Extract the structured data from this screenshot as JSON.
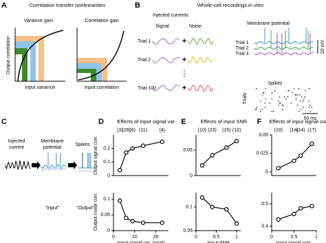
{
  "panels": {
    "A": {
      "letter": "A",
      "title": "Correlation transfer nonlinearities",
      "left": {
        "title": "Variance gain",
        "y_label": "Output correlation",
        "x_label": "Input variance"
      },
      "right": {
        "title": "Correlation gain",
        "x_label": "Input correlation"
      }
    },
    "B": {
      "letter": "B",
      "title": "Whole-cell recordings in vitro",
      "injected": "Injected currents",
      "signal": "Signal",
      "noise": "Noise",
      "trials": [
        "Trial 1",
        "Trial 2",
        "Trial 100"
      ],
      "plus": "+",
      "ellipsis": "⋮",
      "membrane": "Membrane potential",
      "mp_trials": [
        "Trial 1",
        "Trial 2",
        "Trial 3"
      ],
      "mv_scale": "20 mV",
      "spikes": "Spikes",
      "trials_label": "Trials",
      "ms_scale": "50 ms"
    },
    "C": {
      "letter": "C",
      "injected": [
        "Injected",
        "current"
      ],
      "membrane": [
        "Membrane",
        "potential"
      ],
      "spikes": "Spikes",
      "input": "\"Input\"",
      "output": "\"Output\""
    }
  },
  "chart_data": [
    {
      "type": "line",
      "panel_label": "D",
      "title": "Effects of input signal var.",
      "annotations": [
        "(3)",
        "(29)",
        "(6)",
        "(11)",
        "(4)"
      ],
      "y_label": "Output signal corr.",
      "x": [
        3,
        6,
        9,
        14,
        23
      ],
      "values": [
        0.04,
        0.17,
        0.2,
        0.22,
        0.25
      ],
      "color": "#000000",
      "xlim": [
        0,
        26
      ],
      "ylim": [
        0,
        0.3
      ],
      "yticks": [
        0,
        0.1,
        0.2
      ]
    },
    {
      "type": "line",
      "y_label": "Output noise corr.",
      "x_label": "Input signal var. (mV²)",
      "x": [
        3,
        6,
        9,
        14,
        23
      ],
      "values": [
        0.095,
        0.04,
        0.03,
        0.025,
        0.025
      ],
      "color": "#000000",
      "xlim": [
        0,
        26
      ],
      "xticks": [
        0,
        10,
        20
      ],
      "ylim": [
        0,
        0.12
      ],
      "yticks": [
        0,
        0.05,
        0.1
      ]
    },
    {
      "type": "line",
      "panel_label": "E",
      "title": "Effects of input SNR",
      "annotations": [
        "(10)",
        "(23)",
        "(15)",
        "(12)"
      ],
      "x": [
        0.15,
        0.4,
        0.75,
        1.0
      ],
      "values": [
        0.02,
        0.04,
        0.055,
        0.068
      ],
      "color": "#000000",
      "xlim": [
        0,
        1.1
      ],
      "ylim": [
        0,
        0.08
      ],
      "yticks": [
        0,
        0.05
      ]
    },
    {
      "type": "line",
      "x_label": "Input SNR",
      "x": [
        0.15,
        0.4,
        0.75,
        1.0
      ],
      "values": [
        0.12,
        0.1,
        0.095,
        0.065
      ],
      "color": "#000000",
      "xlim": [
        0,
        1.1
      ],
      "xticks": [
        0,
        0.5,
        1
      ],
      "ylim": [
        0.05,
        0.13
      ],
      "yticks": [
        0.05,
        0.1
      ]
    },
    {
      "type": "line",
      "panel_label": "F",
      "title": "Effects of input signal corr.",
      "annotations": [
        "(10)",
        "(14)",
        "(14)",
        "(17)"
      ],
      "x": [
        0.15,
        0.5,
        0.65,
        0.9
      ],
      "values": [
        0.005,
        0.015,
        0.022,
        0.038
      ],
      "color": "#000000",
      "xlim": [
        0,
        1
      ],
      "ylim": [
        -0.005,
        0.05
      ],
      "yticks": [
        0,
        0.025,
        0.05
      ]
    },
    {
      "type": "line",
      "x_label": "Input signal corr.",
      "x": [
        0.15,
        0.5,
        0.65,
        0.9
      ],
      "values": [
        0.43,
        0.455,
        0.48,
        0.49
      ],
      "color": "#000000",
      "xlim": [
        0,
        1
      ],
      "xticks": [
        0,
        0.5,
        1
      ],
      "ylim": [
        0.38,
        0.55
      ],
      "yticks": [
        0.4,
        0.5
      ]
    }
  ]
}
